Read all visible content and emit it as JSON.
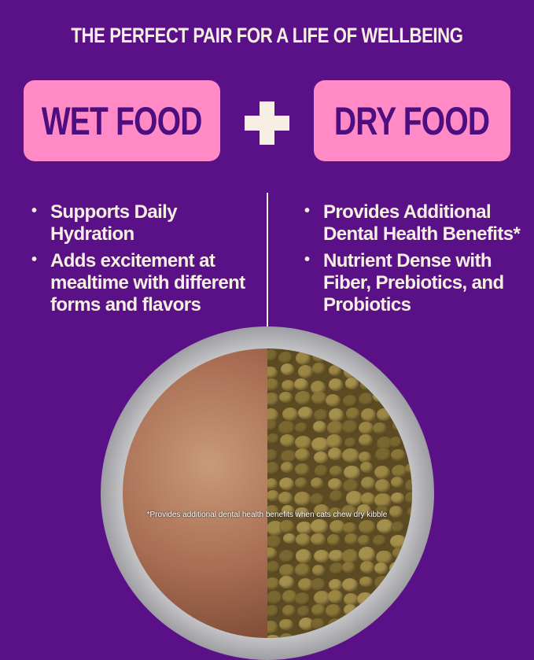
{
  "headline": "THE PERFECT PAIR FOR A LIFE OF WELLBEING",
  "wet": {
    "label": "WET FOOD",
    "benefits": [
      "Supports Daily Hydration",
      "Adds excitement at mealtime with different forms and flavors"
    ]
  },
  "plus_icon": "plus-icon",
  "dry": {
    "label": "DRY FOOD",
    "benefits": [
      "Provides Additional Dental Health Benefits*",
      "Nutrient Dense with Fiber, Prebiotics, and Probiotics"
    ]
  },
  "footnote": "*Provides additional dental health benefits when cats chew dry kibble",
  "colors": {
    "background": "#5a1188",
    "pink": "#ff8ac6",
    "label_text": "#4d0f80",
    "cream": "#f7efe3"
  }
}
